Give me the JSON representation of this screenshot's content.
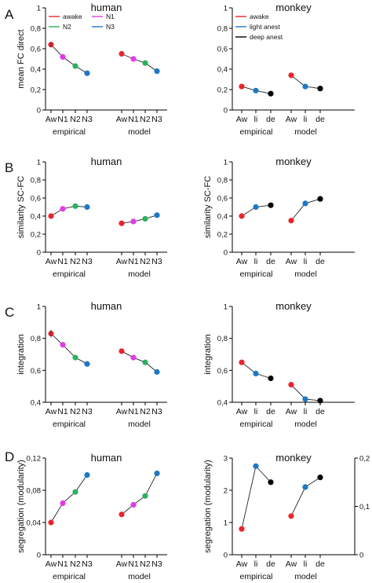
{
  "colors": {
    "awake": "#e8262d",
    "n1": "#e23be6",
    "n2": "#2bb15f",
    "n3": "#1f78c4",
    "light_anest": "#1f78c4",
    "deep_anest": "#000000",
    "axis": "#000000"
  },
  "chart_data": [
    {
      "type": "line",
      "panel_label": "A",
      "title": "human",
      "ylabel": "mean FC direct",
      "ylim": [
        0,
        1
      ],
      "yticks": [
        "0",
        "0,2",
        "0,4",
        "0,6",
        "0,8",
        "1"
      ],
      "categories": [
        "Aw",
        "N1",
        "N2",
        "N3"
      ],
      "groups": [
        {
          "name": "empirical",
          "values": [
            0.64,
            0.52,
            0.43,
            0.36
          ]
        },
        {
          "name": "model",
          "values": [
            0.55,
            0.5,
            0.46,
            0.38
          ]
        }
      ],
      "legend": [
        {
          "label": "awake",
          "color_key": "awake"
        },
        {
          "label": "N1",
          "color_key": "n1"
        },
        {
          "label": "N2",
          "color_key": "n2"
        },
        {
          "label": "N3",
          "color_key": "n3"
        }
      ],
      "point_colors": [
        "awake",
        "n1",
        "n2",
        "n3"
      ]
    },
    {
      "type": "line",
      "title": "monkey",
      "ylabel": "",
      "ylim": [
        0,
        1
      ],
      "yticks": [
        "0",
        "0,2",
        "0,4",
        "0,6",
        "0,8",
        "1"
      ],
      "categories": [
        "Aw",
        "li",
        "de"
      ],
      "groups": [
        {
          "name": "empirical",
          "values": [
            0.23,
            0.19,
            0.16
          ]
        },
        {
          "name": "model",
          "values": [
            0.34,
            0.23,
            0.21
          ]
        }
      ],
      "legend": [
        {
          "label": "awake",
          "color_key": "awake"
        },
        {
          "label": "light anest",
          "color_key": "light_anest"
        },
        {
          "label": "deep anest",
          "color_key": "deep_anest"
        }
      ],
      "point_colors": [
        "awake",
        "light_anest",
        "deep_anest"
      ]
    },
    {
      "type": "line",
      "panel_label": "B",
      "title": "human",
      "ylabel": "similarity SC-FC",
      "ylim": [
        0,
        1
      ],
      "yticks": [
        "0",
        "0,2",
        "0,4",
        "0,6",
        "0,8",
        "1"
      ],
      "categories": [
        "Aw",
        "N1",
        "N2",
        "N3"
      ],
      "groups": [
        {
          "name": "empirical",
          "values": [
            0.4,
            0.48,
            0.51,
            0.5
          ]
        },
        {
          "name": "model",
          "values": [
            0.32,
            0.34,
            0.37,
            0.41
          ]
        }
      ],
      "point_colors": [
        "awake",
        "n1",
        "n2",
        "n3"
      ]
    },
    {
      "type": "line",
      "title": "monkey",
      "ylabel": "similarity SC-FC",
      "ylim": [
        0,
        1
      ],
      "yticks": [
        "0",
        "0,2",
        "0,4",
        "0,6",
        "0,8",
        "1"
      ],
      "categories": [
        "Aw",
        "li",
        "de"
      ],
      "groups": [
        {
          "name": "empirical",
          "values": [
            0.4,
            0.5,
            0.52
          ]
        },
        {
          "name": "model",
          "values": [
            0.35,
            0.54,
            0.59
          ]
        }
      ],
      "point_colors": [
        "awake",
        "light_anest",
        "deep_anest"
      ]
    },
    {
      "type": "line",
      "panel_label": "C",
      "title": "human",
      "ylabel": "integration",
      "ylim": [
        0.4,
        1
      ],
      "yticks": [
        "0,4",
        "0,6",
        "0,8",
        "1"
      ],
      "categories": [
        "Aw",
        "N1",
        "N2",
        "N3"
      ],
      "groups": [
        {
          "name": "empirical",
          "values": [
            0.83,
            0.76,
            0.68,
            0.64
          ]
        },
        {
          "name": "model",
          "values": [
            0.72,
            0.68,
            0.65,
            0.59
          ]
        }
      ],
      "point_colors": [
        "awake",
        "n1",
        "n2",
        "n3"
      ]
    },
    {
      "type": "line",
      "title": "monkey",
      "ylabel": "integration",
      "ylim": [
        0.4,
        1
      ],
      "yticks": [
        "0,4",
        "0,6",
        "0,8",
        "1"
      ],
      "categories": [
        "Aw",
        "li",
        "de"
      ],
      "groups": [
        {
          "name": "empirical",
          "values": [
            0.65,
            0.58,
            0.55
          ]
        },
        {
          "name": "model",
          "values": [
            0.51,
            0.42,
            0.41
          ]
        }
      ],
      "point_colors": [
        "awake",
        "light_anest",
        "deep_anest"
      ]
    },
    {
      "type": "line",
      "panel_label": "D",
      "title": "human",
      "ylabel": "segregation (modularity)",
      "ylim": [
        0,
        0.12
      ],
      "yticks": [
        "0",
        "0,04",
        "0,08",
        "0,12"
      ],
      "categories": [
        "Aw",
        "N1",
        "N2",
        "N3"
      ],
      "groups": [
        {
          "name": "empirical",
          "values": [
            0.04,
            0.064,
            0.078,
            0.099
          ]
        },
        {
          "name": "model",
          "values": [
            0.05,
            0.062,
            0.073,
            0.101
          ]
        }
      ],
      "point_colors": [
        "awake",
        "n1",
        "n2",
        "n3"
      ]
    },
    {
      "type": "line",
      "title": "monkey",
      "ylabel": "segregation (modularity)",
      "ylim": [
        0,
        3
      ],
      "yticks": [
        "0",
        "1",
        "2",
        "3"
      ],
      "y2lim": [
        0,
        0.2
      ],
      "y2ticks": [
        "0",
        "0,1",
        "0,2"
      ],
      "categories": [
        "Aw",
        "li",
        "de"
      ],
      "groups": [
        {
          "name": "empirical",
          "axis": "left",
          "values": [
            0.8,
            2.75,
            2.25
          ]
        },
        {
          "name": "model",
          "axis": "right",
          "values": [
            0.08,
            0.14,
            0.16
          ]
        }
      ],
      "point_colors": [
        "awake",
        "light_anest",
        "deep_anest"
      ]
    }
  ]
}
